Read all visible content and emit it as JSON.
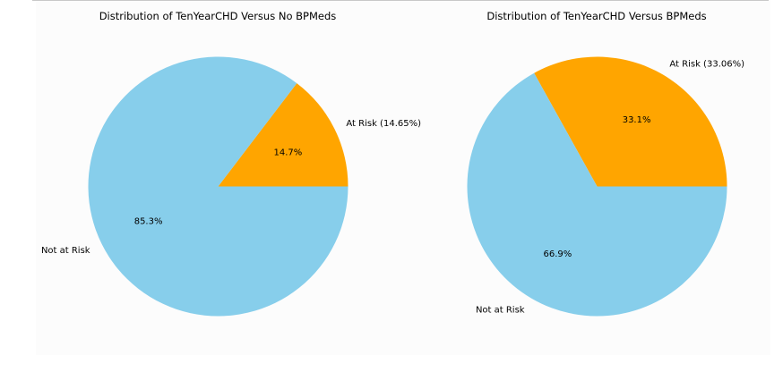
{
  "chart_data": [
    {
      "type": "pie",
      "title": "Distribution of TenYearCHD Versus No BPMeds",
      "slices": [
        {
          "label": "At Risk (14.65%)",
          "value": 14.65,
          "pct_label": "14.7%",
          "color": "#FFA500"
        },
        {
          "label": "Not at Risk",
          "value": 85.35,
          "pct_label": "85.3%",
          "color": "#87CEEB"
        }
      ]
    },
    {
      "type": "pie",
      "title": "Distribution of TenYearCHD Versus BPMeds",
      "slices": [
        {
          "label": "At Risk (33.06%)",
          "value": 33.06,
          "pct_label": "33.1%",
          "color": "#FFA500"
        },
        {
          "label": "Not at Risk",
          "value": 66.94,
          "pct_label": "66.9%",
          "color": "#87CEEB"
        }
      ]
    }
  ]
}
